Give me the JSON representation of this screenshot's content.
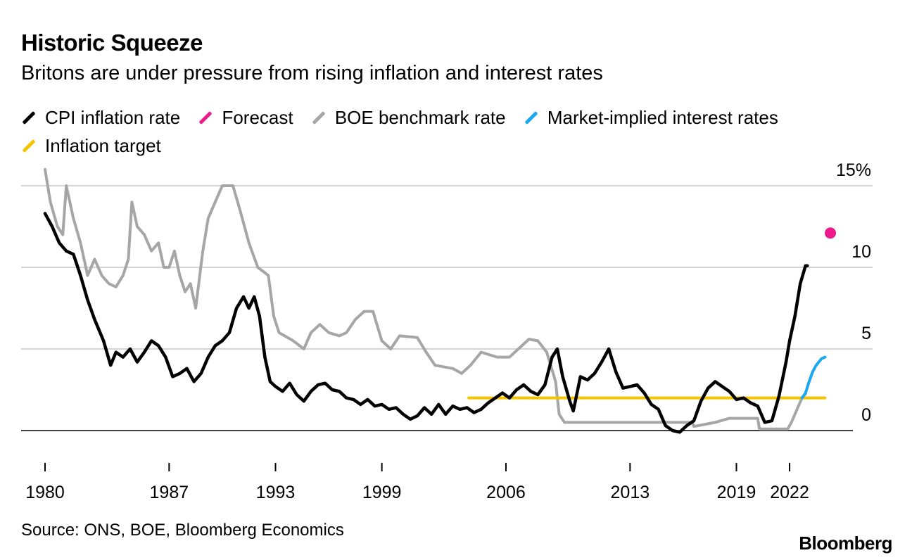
{
  "title": "Historic Squeeze",
  "subtitle": "Britons are under pressure from rising inflation and interest rates",
  "source": "Source: ONS, BOE, Bloomberg Economics",
  "logo": "Bloomberg",
  "legend": [
    {
      "label": "CPI inflation rate",
      "color": "#000000"
    },
    {
      "label": "Forecast",
      "color": "#ee1a8c"
    },
    {
      "label": "BOE benchmark rate",
      "color": "#a6a6a6"
    },
    {
      "label": "Market-implied interest rates",
      "color": "#1aa8f0"
    },
    {
      "label": "Inflation target",
      "color": "#f5c400"
    }
  ],
  "chart_data": {
    "type": "line",
    "title": "Historic Squeeze",
    "xlabel": "",
    "ylabel": "",
    "xlim": [
      1980,
      2024.3
    ],
    "ylim": [
      0,
      15
    ],
    "x_ticks": [
      1980,
      1987,
      1993,
      1999,
      2006,
      2013,
      2019,
      2022
    ],
    "y_ticks": [
      {
        "value": 0,
        "label": "0"
      },
      {
        "value": 5,
        "label": "5"
      },
      {
        "value": 10,
        "label": "10"
      },
      {
        "value": 15,
        "label": "15%"
      }
    ],
    "series": [
      {
        "name": "CPI inflation rate",
        "color": "#000000",
        "points": [
          [
            1980,
            13.3
          ],
          [
            1980.4,
            12.5
          ],
          [
            1980.8,
            11.5
          ],
          [
            1981.2,
            11.0
          ],
          [
            1981.6,
            10.8
          ],
          [
            1982.0,
            9.5
          ],
          [
            1982.4,
            8.0
          ],
          [
            1982.8,
            6.8
          ],
          [
            1983.3,
            5.5
          ],
          [
            1983.7,
            4.0
          ],
          [
            1984.0,
            4.8
          ],
          [
            1984.4,
            4.5
          ],
          [
            1984.8,
            5.0
          ],
          [
            1985.2,
            4.2
          ],
          [
            1985.6,
            4.8
          ],
          [
            1986.0,
            5.5
          ],
          [
            1986.4,
            5.2
          ],
          [
            1986.8,
            4.5
          ],
          [
            1987.2,
            3.3
          ],
          [
            1987.6,
            3.5
          ],
          [
            1988.0,
            3.8
          ],
          [
            1988.4,
            3.0
          ],
          [
            1988.8,
            3.5
          ],
          [
            1989.2,
            4.5
          ],
          [
            1989.6,
            5.2
          ],
          [
            1990.0,
            5.5
          ],
          [
            1990.4,
            6.0
          ],
          [
            1990.8,
            7.5
          ],
          [
            1991.2,
            8.2
          ],
          [
            1991.5,
            7.5
          ],
          [
            1991.8,
            8.2
          ],
          [
            1992.1,
            7.0
          ],
          [
            1992.4,
            4.5
          ],
          [
            1992.7,
            3.0
          ],
          [
            1993.0,
            2.7
          ],
          [
            1993.4,
            2.4
          ],
          [
            1993.8,
            2.9
          ],
          [
            1994.2,
            2.2
          ],
          [
            1994.6,
            1.8
          ],
          [
            1995.0,
            2.4
          ],
          [
            1995.4,
            2.8
          ],
          [
            1995.8,
            2.9
          ],
          [
            1996.2,
            2.5
          ],
          [
            1996.6,
            2.4
          ],
          [
            1997.0,
            2.0
          ],
          [
            1997.4,
            1.9
          ],
          [
            1997.8,
            1.6
          ],
          [
            1998.2,
            1.9
          ],
          [
            1998.6,
            1.5
          ],
          [
            1999.0,
            1.6
          ],
          [
            1999.4,
            1.3
          ],
          [
            1999.8,
            1.4
          ],
          [
            2000.2,
            1.0
          ],
          [
            2000.6,
            0.7
          ],
          [
            2001.0,
            0.9
          ],
          [
            2001.4,
            1.4
          ],
          [
            2001.8,
            1.0
          ],
          [
            2002.2,
            1.6
          ],
          [
            2002.6,
            1.0
          ],
          [
            2003.0,
            1.5
          ],
          [
            2003.4,
            1.3
          ],
          [
            2003.8,
            1.4
          ],
          [
            2004.2,
            1.1
          ],
          [
            2004.6,
            1.3
          ],
          [
            2005.0,
            1.7
          ],
          [
            2005.4,
            2.0
          ],
          [
            2005.8,
            2.3
          ],
          [
            2006.2,
            2.0
          ],
          [
            2006.6,
            2.5
          ],
          [
            2007.0,
            2.8
          ],
          [
            2007.4,
            2.4
          ],
          [
            2007.8,
            2.2
          ],
          [
            2008.2,
            2.8
          ],
          [
            2008.6,
            4.5
          ],
          [
            2008.9,
            5.0
          ],
          [
            2009.2,
            3.3
          ],
          [
            2009.6,
            1.8
          ],
          [
            2009.8,
            1.2
          ],
          [
            2010.2,
            3.3
          ],
          [
            2010.6,
            3.1
          ],
          [
            2011.0,
            3.5
          ],
          [
            2011.4,
            4.2
          ],
          [
            2011.8,
            5.0
          ],
          [
            2012.2,
            3.6
          ],
          [
            2012.6,
            2.6
          ],
          [
            2013.0,
            2.7
          ],
          [
            2013.4,
            2.8
          ],
          [
            2013.8,
            2.3
          ],
          [
            2014.2,
            1.6
          ],
          [
            2014.6,
            1.3
          ],
          [
            2015.0,
            0.3
          ],
          [
            2015.4,
            0.0
          ],
          [
            2015.8,
            -0.1
          ],
          [
            2016.2,
            0.3
          ],
          [
            2016.6,
            0.6
          ],
          [
            2017.0,
            1.8
          ],
          [
            2017.4,
            2.6
          ],
          [
            2017.8,
            3.0
          ],
          [
            2018.2,
            2.7
          ],
          [
            2018.6,
            2.4
          ],
          [
            2019.0,
            1.9
          ],
          [
            2019.4,
            2.0
          ],
          [
            2019.8,
            1.7
          ],
          [
            2020.2,
            1.5
          ],
          [
            2020.6,
            0.5
          ],
          [
            2021.0,
            0.6
          ],
          [
            2021.4,
            2.1
          ],
          [
            2021.8,
            4.2
          ],
          [
            2022.0,
            5.5
          ],
          [
            2022.3,
            7.0
          ],
          [
            2022.6,
            9.0
          ],
          [
            2022.9,
            10.1
          ],
          [
            2023.0,
            10.1
          ]
        ]
      },
      {
        "name": "BOE benchmark rate",
        "color": "#a6a6a6",
        "points": [
          [
            1980,
            16.0
          ],
          [
            1980.3,
            14.0
          ],
          [
            1980.7,
            12.5
          ],
          [
            1981.0,
            12.0
          ],
          [
            1981.2,
            15.0
          ],
          [
            1981.6,
            13.0
          ],
          [
            1982.0,
            11.5
          ],
          [
            1982.4,
            9.5
          ],
          [
            1982.8,
            10.5
          ],
          [
            1983.2,
            9.5
          ],
          [
            1983.6,
            9.0
          ],
          [
            1984.0,
            8.8
          ],
          [
            1984.4,
            9.5
          ],
          [
            1984.7,
            10.5
          ],
          [
            1984.9,
            14.0
          ],
          [
            1985.2,
            12.5
          ],
          [
            1985.6,
            12.0
          ],
          [
            1986.0,
            11.0
          ],
          [
            1986.4,
            11.5
          ],
          [
            1986.7,
            10.0
          ],
          [
            1987.0,
            10.0
          ],
          [
            1987.3,
            11.0
          ],
          [
            1987.6,
            9.5
          ],
          [
            1987.9,
            8.5
          ],
          [
            1988.2,
            9.0
          ],
          [
            1988.5,
            7.5
          ],
          [
            1988.9,
            11.0
          ],
          [
            1989.2,
            13.0
          ],
          [
            1989.6,
            14.0
          ],
          [
            1990.0,
            15.0
          ],
          [
            1990.6,
            15.0
          ],
          [
            1991.0,
            13.5
          ],
          [
            1991.5,
            11.5
          ],
          [
            1992.0,
            10.0
          ],
          [
            1992.6,
            9.5
          ],
          [
            1992.9,
            7.0
          ],
          [
            1993.2,
            6.0
          ],
          [
            1994.0,
            5.5
          ],
          [
            1994.6,
            5.0
          ],
          [
            1995.0,
            6.0
          ],
          [
            1995.5,
            6.5
          ],
          [
            1996.0,
            6.0
          ],
          [
            1996.6,
            5.8
          ],
          [
            1997.0,
            6.0
          ],
          [
            1997.5,
            6.8
          ],
          [
            1998.0,
            7.3
          ],
          [
            1998.5,
            7.3
          ],
          [
            1999.0,
            5.5
          ],
          [
            1999.5,
            5.0
          ],
          [
            2000.0,
            5.8
          ],
          [
            2001.0,
            5.7
          ],
          [
            2001.5,
            4.8
          ],
          [
            2002.0,
            4.0
          ],
          [
            2003.0,
            3.8
          ],
          [
            2003.5,
            3.5
          ],
          [
            2004.0,
            4.0
          ],
          [
            2004.6,
            4.8
          ],
          [
            2005.5,
            4.5
          ],
          [
            2006.2,
            4.5
          ],
          [
            2006.7,
            5.0
          ],
          [
            2007.3,
            5.6
          ],
          [
            2007.8,
            5.5
          ],
          [
            2008.3,
            4.8
          ],
          [
            2008.8,
            3.0
          ],
          [
            2009.0,
            1.0
          ],
          [
            2009.3,
            0.5
          ],
          [
            2016.5,
            0.5
          ],
          [
            2016.6,
            0.25
          ],
          [
            2017.8,
            0.5
          ],
          [
            2018.6,
            0.75
          ],
          [
            2020.2,
            0.75
          ],
          [
            2020.3,
            0.1
          ],
          [
            2021.9,
            0.1
          ],
          [
            2022.1,
            0.5
          ],
          [
            2022.4,
            1.25
          ],
          [
            2022.7,
            2.0
          ],
          [
            2022.9,
            2.25
          ]
        ]
      },
      {
        "name": "Market-implied interest rates",
        "color": "#1aa8f0",
        "points": [
          [
            2022.7,
            2.0
          ],
          [
            2022.9,
            2.3
          ],
          [
            2023.1,
            3.0
          ],
          [
            2023.3,
            3.6
          ],
          [
            2023.5,
            4.0
          ],
          [
            2023.8,
            4.4
          ],
          [
            2024.0,
            4.5
          ]
        ]
      },
      {
        "name": "Inflation target",
        "color": "#f5c400",
        "points": [
          [
            2003.9,
            2.0
          ],
          [
            2024.0,
            2.0
          ]
        ]
      }
    ],
    "forecast": {
      "name": "Forecast",
      "color": "#ee1a8c",
      "x": 2024.3,
      "y": 12.1
    }
  }
}
